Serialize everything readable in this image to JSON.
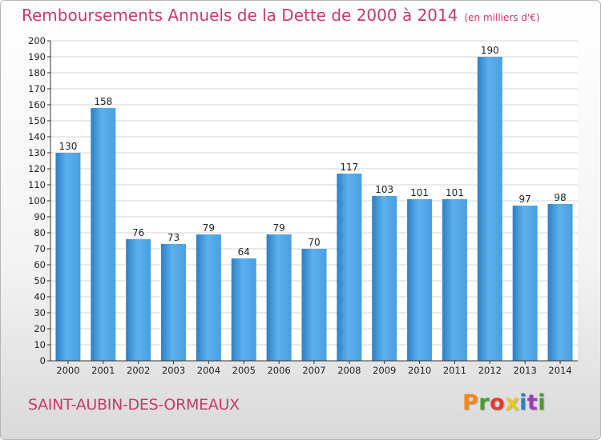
{
  "chart_data": {
    "type": "bar",
    "title": "Remboursements Annuels de la Dette de 2000 à 2014",
    "subtitle": "(en milliers d'€)",
    "categories": [
      "2000",
      "2001",
      "2002",
      "2003",
      "2004",
      "2005",
      "2006",
      "2007",
      "2008",
      "2009",
      "2010",
      "2011",
      "2012",
      "2013",
      "2014"
    ],
    "values": [
      130,
      158,
      76,
      73,
      79,
      64,
      79,
      70,
      117,
      103,
      101,
      101,
      190,
      97,
      98
    ],
    "ylim": [
      0,
      200
    ],
    "yticks": [
      0,
      10,
      20,
      30,
      40,
      50,
      60,
      70,
      80,
      90,
      100,
      110,
      120,
      130,
      140,
      150,
      160,
      170,
      180,
      190,
      200
    ],
    "grid": true,
    "bar_color": "#4a9fe0",
    "bar_color_dark": "#2f7fc4"
  },
  "footer": {
    "town": "SAINT-AUBIN-DES-ORMEAUX",
    "logo": "Proxiti"
  },
  "colors": {
    "title": "#c83a6a",
    "logo_letters": [
      "#f08a1c",
      "#4a9c2c",
      "#e03a2c",
      "#e8c81c",
      "#2f7fc4",
      "#9c3ac0",
      "#4a9c2c"
    ]
  }
}
